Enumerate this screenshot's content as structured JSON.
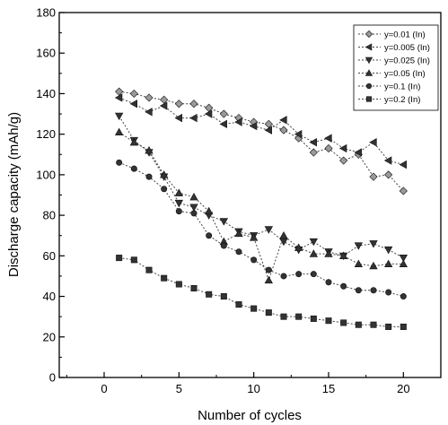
{
  "chart_data": {
    "type": "line",
    "title": "",
    "xlabel": "Number of cycles",
    "ylabel": "Discharge capacity (mAh/g)",
    "xlim": [
      -3,
      22.5
    ],
    "ylim": [
      0,
      180
    ],
    "x_ticks": [
      0,
      5,
      10,
      15,
      20
    ],
    "y_ticks": [
      0,
      20,
      40,
      60,
      80,
      100,
      120,
      140,
      160,
      180
    ],
    "grid": false,
    "legend_position": "top-right",
    "series": [
      {
        "name": "y=0.01 (In)",
        "marker": "diamond",
        "x": [
          1,
          2,
          3,
          4,
          5,
          6,
          7,
          8,
          9,
          10,
          11,
          12,
          13,
          14,
          15,
          16,
          17,
          18,
          19,
          20
        ],
        "y": [
          141,
          140,
          138,
          137,
          135,
          135,
          133,
          130,
          128,
          126,
          125,
          122,
          118,
          111,
          113,
          107,
          110,
          99,
          100,
          92
        ]
      },
      {
        "name": "y=0.005 (In)",
        "marker": "triangle-left",
        "x": [
          1,
          2,
          3,
          4,
          5,
          6,
          7,
          8,
          9,
          10,
          11,
          12,
          13,
          14,
          15,
          16,
          17,
          18,
          19,
          20
        ],
        "y": [
          138,
          135,
          131,
          134,
          128,
          128,
          130,
          125,
          126,
          124,
          122,
          127,
          120,
          116,
          118,
          113,
          111,
          116,
          107,
          105
        ]
      },
      {
        "name": "y=0.025 (In)",
        "marker": "triangle-down",
        "x": [
          1,
          2,
          3,
          4,
          5,
          6,
          7,
          8,
          9,
          10,
          11,
          12,
          13,
          14,
          15,
          16,
          17,
          18,
          19,
          20
        ],
        "y": [
          129,
          117,
          111,
          99,
          86,
          84,
          80,
          77,
          72,
          70,
          73,
          67,
          63,
          67,
          62,
          60,
          65,
          66,
          63,
          59
        ]
      },
      {
        "name": "y=0.05 (In)",
        "marker": "triangle-up",
        "x": [
          1,
          2,
          3,
          4,
          5,
          6,
          7,
          8,
          9,
          10,
          11,
          12,
          13,
          14,
          15,
          16,
          17,
          18,
          19,
          20
        ],
        "y": [
          121,
          116,
          112,
          100,
          91,
          89,
          82,
          67,
          71,
          69,
          48,
          70,
          64,
          61,
          61,
          60,
          56,
          55,
          56,
          56
        ]
      },
      {
        "name": "y=0.1 (In)",
        "marker": "circle",
        "x": [
          1,
          2,
          3,
          4,
          5,
          6,
          7,
          8,
          9,
          10,
          11,
          12,
          13,
          14,
          15,
          16,
          17,
          18,
          19,
          20
        ],
        "y": [
          106,
          103,
          99,
          93,
          82,
          81,
          70,
          65,
          62,
          58,
          53,
          50,
          51,
          51,
          47,
          45,
          43,
          43,
          42,
          40
        ]
      },
      {
        "name": "y=0.2 (In)",
        "marker": "square",
        "x": [
          1,
          2,
          3,
          4,
          5,
          6,
          7,
          8,
          9,
          10,
          11,
          12,
          13,
          14,
          15,
          16,
          17,
          18,
          19,
          20
        ],
        "y": [
          59,
          58,
          53,
          49,
          46,
          44,
          41,
          40,
          36,
          34,
          32,
          30,
          30,
          29,
          28,
          27,
          26,
          26,
          25,
          25
        ]
      }
    ]
  }
}
